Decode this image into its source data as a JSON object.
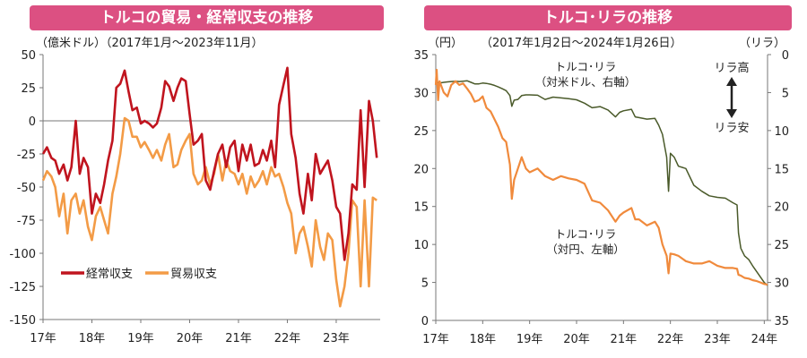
{
  "chart_data": [
    {
      "type": "line",
      "title": "トルコの貿易・経常収支の推移",
      "subtitle": "（億米ドル）（2017年1月～2023年11月）",
      "ylim": [
        -150,
        50
      ],
      "yticks": [
        "50",
        "25",
        "0",
        "-25",
        "-50",
        "-75",
        "-100",
        "-125",
        "-150"
      ],
      "xticks": [
        "17年",
        "18年",
        "19年",
        "20年",
        "21年",
        "22年",
        "23年"
      ],
      "xstart": 2017.0,
      "xend": 2023.9,
      "grid": false,
      "legend": "bottom-left",
      "series": [
        {
          "name": "経常収支",
          "color": "#c0141e",
          "x": [
            2017.0,
            2017.08,
            2017.17,
            2017.25,
            2017.33,
            2017.42,
            2017.5,
            2017.58,
            2017.67,
            2017.75,
            2017.83,
            2017.92,
            2018.0,
            2018.08,
            2018.17,
            2018.25,
            2018.33,
            2018.42,
            2018.5,
            2018.58,
            2018.67,
            2018.75,
            2018.83,
            2018.92,
            2019.0,
            2019.08,
            2019.17,
            2019.25,
            2019.33,
            2019.42,
            2019.5,
            2019.58,
            2019.67,
            2019.75,
            2019.83,
            2019.92,
            2020.0,
            2020.08,
            2020.17,
            2020.25,
            2020.33,
            2020.42,
            2020.5,
            2020.58,
            2020.67,
            2020.75,
            2020.83,
            2020.92,
            2021.0,
            2021.08,
            2021.17,
            2021.25,
            2021.33,
            2021.42,
            2021.5,
            2021.58,
            2021.67,
            2021.75,
            2021.83,
            2021.92,
            2022.0,
            2022.08,
            2022.17,
            2022.25,
            2022.33,
            2022.42,
            2022.5,
            2022.58,
            2022.67,
            2022.75,
            2022.83,
            2022.92,
            2023.0,
            2023.08,
            2023.17,
            2023.25,
            2023.33,
            2023.42,
            2023.5,
            2023.58,
            2023.67,
            2023.75,
            2023.83
          ],
          "values": [
            -25,
            -20,
            -28,
            -30,
            -40,
            -33,
            -45,
            -35,
            0,
            -40,
            -28,
            -35,
            -70,
            -55,
            -62,
            -48,
            -30,
            -15,
            25,
            28,
            38,
            22,
            8,
            10,
            -2,
            0,
            -2,
            -5,
            -2,
            10,
            30,
            26,
            15,
            25,
            32,
            30,
            5,
            -18,
            -15,
            -10,
            -45,
            -52,
            -38,
            -25,
            -18,
            -35,
            -20,
            -15,
            -38,
            -18,
            -30,
            -18,
            -34,
            -32,
            -22,
            -30,
            -15,
            -35,
            12,
            27,
            40,
            -10,
            -28,
            -55,
            -70,
            -40,
            -60,
            -25,
            -40,
            -35,
            -30,
            -45,
            -65,
            -70,
            -105,
            -85,
            -48,
            -52,
            8,
            -50,
            15,
            0,
            -28
          ]
        },
        {
          "name": "貿易収支",
          "color": "#f39b46",
          "x": [
            2017.0,
            2017.08,
            2017.17,
            2017.25,
            2017.33,
            2017.42,
            2017.5,
            2017.58,
            2017.67,
            2017.75,
            2017.83,
            2017.92,
            2018.0,
            2018.08,
            2018.17,
            2018.25,
            2018.33,
            2018.42,
            2018.5,
            2018.58,
            2018.67,
            2018.75,
            2018.83,
            2018.92,
            2019.0,
            2019.08,
            2019.17,
            2019.25,
            2019.33,
            2019.42,
            2019.5,
            2019.58,
            2019.67,
            2019.75,
            2019.83,
            2019.92,
            2020.0,
            2020.08,
            2020.17,
            2020.25,
            2020.33,
            2020.42,
            2020.5,
            2020.58,
            2020.67,
            2020.75,
            2020.83,
            2020.92,
            2021.0,
            2021.08,
            2021.17,
            2021.25,
            2021.33,
            2021.42,
            2021.5,
            2021.58,
            2021.67,
            2021.75,
            2021.83,
            2021.92,
            2022.0,
            2022.08,
            2022.17,
            2022.25,
            2022.33,
            2022.42,
            2022.5,
            2022.58,
            2022.67,
            2022.75,
            2022.83,
            2022.92,
            2023.0,
            2023.08,
            2023.17,
            2023.25,
            2023.33,
            2023.42,
            2023.5,
            2023.58,
            2023.67,
            2023.75,
            2023.83
          ],
          "values": [
            -45,
            -38,
            -42,
            -50,
            -72,
            -55,
            -85,
            -60,
            -55,
            -70,
            -60,
            -80,
            -90,
            -72,
            -65,
            -75,
            -85,
            -55,
            -42,
            -25,
            2,
            0,
            -12,
            -12,
            -20,
            -16,
            -22,
            -28,
            -22,
            -30,
            -18,
            -10,
            -35,
            -33,
            -22,
            -15,
            -10,
            -40,
            -48,
            -45,
            -35,
            -48,
            -40,
            -25,
            -45,
            -30,
            -38,
            -40,
            -48,
            -40,
            -55,
            -42,
            -50,
            -45,
            -38,
            -48,
            -35,
            -42,
            -40,
            -50,
            -62,
            -70,
            -100,
            -85,
            -80,
            -95,
            -110,
            -75,
            -95,
            -105,
            -85,
            -90,
            -120,
            -140,
            -125,
            -100,
            -60,
            -65,
            -125,
            -60,
            -125,
            -58,
            -60
          ]
        }
      ]
    },
    {
      "type": "line",
      "title": "トルコ･リラの推移",
      "subtitle": "（2017年1月2日～2024年1月26日）",
      "ylabel_left": "（円）",
      "ylabel_right": "（リラ）",
      "ylim_left": [
        0,
        35
      ],
      "ylim_right": [
        35,
        0
      ],
      "yticks_left": [
        "35",
        "30",
        "25",
        "20",
        "15",
        "10",
        "5",
        "0"
      ],
      "yticks_right": [
        "0",
        "5",
        "10",
        "15",
        "20",
        "25",
        "30",
        "35"
      ],
      "xticks": [
        "17年",
        "18年",
        "19年",
        "20年",
        "21年",
        "22年",
        "23年",
        "24年"
      ],
      "xstart": 2017.0,
      "xend": 2024.07,
      "grid": false,
      "annotations": [
        "リラ高",
        "リラ安"
      ],
      "series": [
        {
          "name": "トルコ･リラ（対米ドル、右軸）",
          "axis": "right",
          "color": "#4a5a2a",
          "x": [
            2017.0,
            2017.08,
            2017.17,
            2017.25,
            2017.33,
            2017.42,
            2017.5,
            2017.58,
            2017.67,
            2017.75,
            2017.83,
            2017.92,
            2018.0,
            2018.08,
            2018.17,
            2018.25,
            2018.33,
            2018.42,
            2018.5,
            2018.58,
            2018.62,
            2018.67,
            2018.75,
            2018.83,
            2018.92,
            2019.0,
            2019.17,
            2019.33,
            2019.5,
            2019.67,
            2019.83,
            2020.0,
            2020.17,
            2020.33,
            2020.5,
            2020.67,
            2020.83,
            2020.92,
            2021.0,
            2021.17,
            2021.25,
            2021.33,
            2021.5,
            2021.67,
            2021.75,
            2021.83,
            2021.92,
            2021.96,
            2022.0,
            2022.08,
            2022.17,
            2022.33,
            2022.5,
            2022.67,
            2022.83,
            2023.0,
            2023.17,
            2023.33,
            2023.42,
            2023.45,
            2023.5,
            2023.58,
            2023.67,
            2023.75,
            2023.83,
            2023.92,
            2024.0,
            2024.07
          ],
          "values": [
            3.55,
            3.75,
            3.65,
            3.6,
            3.55,
            3.5,
            3.55,
            3.5,
            3.45,
            3.65,
            3.85,
            3.85,
            3.75,
            3.8,
            3.9,
            4.05,
            4.25,
            4.5,
            4.75,
            5.4,
            6.8,
            6.0,
            5.9,
            5.4,
            5.3,
            5.3,
            5.35,
            5.9,
            5.6,
            5.7,
            5.8,
            5.95,
            6.4,
            7.0,
            6.85,
            7.3,
            8.2,
            7.6,
            7.4,
            7.2,
            8.2,
            8.3,
            8.5,
            8.4,
            9.3,
            10.5,
            13.5,
            18.0,
            13.0,
            13.5,
            14.7,
            15.0,
            17.2,
            18.0,
            18.6,
            18.8,
            18.9,
            19.5,
            19.8,
            23.5,
            25.5,
            26.5,
            27.0,
            27.8,
            28.5,
            29.3,
            30.0,
            30.4
          ]
        },
        {
          "name": "トルコ･リラ（対円、左軸）",
          "axis": "left",
          "color": "#f08a3c",
          "x": [
            2017.0,
            2017.02,
            2017.05,
            2017.08,
            2017.17,
            2017.25,
            2017.33,
            2017.42,
            2017.5,
            2017.58,
            2017.67,
            2017.75,
            2017.83,
            2017.92,
            2018.0,
            2018.08,
            2018.17,
            2018.25,
            2018.33,
            2018.42,
            2018.5,
            2018.58,
            2018.62,
            2018.67,
            2018.75,
            2018.83,
            2018.92,
            2019.0,
            2019.17,
            2019.33,
            2019.5,
            2019.67,
            2019.83,
            2020.0,
            2020.17,
            2020.33,
            2020.5,
            2020.67,
            2020.83,
            2020.92,
            2021.0,
            2021.17,
            2021.25,
            2021.33,
            2021.5,
            2021.67,
            2021.75,
            2021.83,
            2021.92,
            2021.96,
            2022.0,
            2022.08,
            2022.17,
            2022.33,
            2022.5,
            2022.67,
            2022.83,
            2023.0,
            2023.17,
            2023.33,
            2023.42,
            2023.45,
            2023.5,
            2023.58,
            2023.67,
            2023.75,
            2023.83,
            2023.92,
            2024.0,
            2024.07
          ],
          "values": [
            31.0,
            33.0,
            29.0,
            31.5,
            30.0,
            29.5,
            31.0,
            31.5,
            31.0,
            31.2,
            30.5,
            29.8,
            28.8,
            29.0,
            29.5,
            28.0,
            27.5,
            26.5,
            25.5,
            24.0,
            23.5,
            20.5,
            16.0,
            18.5,
            20.0,
            21.5,
            20.0,
            19.5,
            20.0,
            19.0,
            18.5,
            19.0,
            18.7,
            18.5,
            18.0,
            15.8,
            15.5,
            14.5,
            13.0,
            13.8,
            14.2,
            14.8,
            13.3,
            13.3,
            12.5,
            13.0,
            12.2,
            10.0,
            8.5,
            6.2,
            8.8,
            8.7,
            8.5,
            7.8,
            7.5,
            7.5,
            7.8,
            7.2,
            6.9,
            6.9,
            6.8,
            6.0,
            5.9,
            5.6,
            5.5,
            5.3,
            5.2,
            5.0,
            4.8,
            4.7
          ]
        }
      ]
    }
  ]
}
